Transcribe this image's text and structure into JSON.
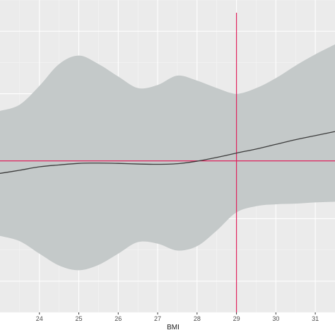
{
  "chart_data": {
    "type": "line",
    "title": "",
    "xlabel": "BMI",
    "ylabel": "",
    "xlim": [
      23.0,
      31.5
    ],
    "ylim": [
      0.0,
      1.0
    ],
    "x_ticks": [
      24,
      25,
      26,
      27,
      28,
      29,
      30,
      31
    ],
    "x_tick_labels": [
      "24",
      "25",
      "26",
      "27",
      "28",
      "29",
      "30",
      "31"
    ],
    "grid": true,
    "background": "#ebebeb",
    "band_color": "#c4c9c9",
    "line_color": "#3c3c3c",
    "ref_line_color": "#e0245e",
    "reference_lines": {
      "vertical_x": 29.0,
      "horizontal_y": 0.485
    },
    "series": [
      {
        "x": [
          23.0,
          23.5,
          24.0,
          24.5,
          25.0,
          25.5,
          26.0,
          26.5,
          27.0,
          27.5,
          28.0,
          28.5,
          29.0,
          29.5,
          30.0,
          30.5,
          31.0,
          31.5
        ],
        "y": [
          0.445,
          0.455,
          0.466,
          0.472,
          0.477,
          0.478,
          0.477,
          0.475,
          0.474,
          0.476,
          0.484,
          0.496,
          0.51,
          0.523,
          0.538,
          0.553,
          0.566,
          0.579
        ],
        "y_lower": [
          0.245,
          0.228,
          0.188,
          0.15,
          0.135,
          0.152,
          0.188,
          0.225,
          0.22,
          0.198,
          0.212,
          0.262,
          0.32,
          0.34,
          0.346,
          0.348,
          0.352,
          0.354
        ],
        "y_upper": [
          0.645,
          0.665,
          0.725,
          0.795,
          0.822,
          0.795,
          0.755,
          0.718,
          0.728,
          0.758,
          0.742,
          0.718,
          0.7,
          0.718,
          0.75,
          0.79,
          0.826,
          0.858
        ]
      }
    ]
  }
}
